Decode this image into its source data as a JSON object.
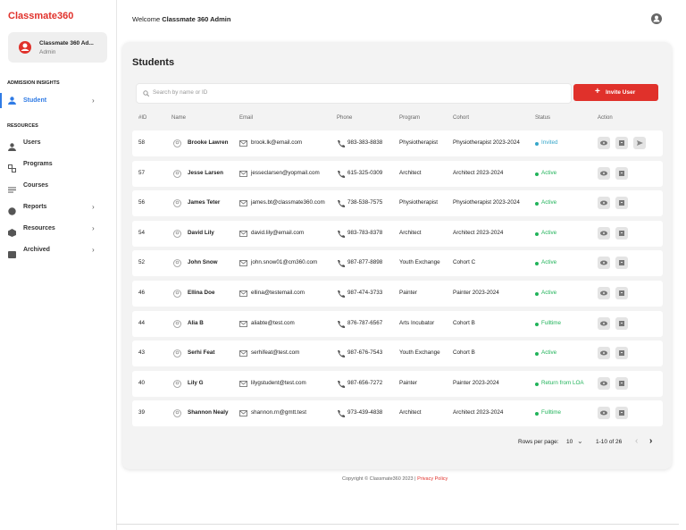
{
  "sidebar": {
    "logo": "Classmate360",
    "user": {
      "name": "Classmate 360 Ad...",
      "role": "Admin"
    },
    "sections": [
      {
        "title": "ADMISSION INSIGHTS",
        "items": [
          "Student"
        ]
      },
      {
        "title": "RESOURCES",
        "items": [
          "Users",
          "Programs",
          "Courses",
          "Reports",
          "Resources",
          "Archived"
        ]
      }
    ]
  },
  "header": {
    "welcome": "Welcome",
    "user": "Classmate 360 Admin"
  },
  "page": {
    "title": "Students",
    "search_placeholder": "Search by name or ID",
    "invite_button": "Invite User"
  },
  "table": {
    "columns": [
      "#ID",
      "Name",
      "Email",
      "Phone",
      "Program",
      "Cohort",
      "Status",
      "Action"
    ],
    "rows": [
      {
        "id": 58,
        "name": "Brooke Lawren",
        "email": "brook.lk@email.com",
        "phone": "983-383-8838",
        "program": "Physiotherapist",
        "cohort": "Physiotherapist 2023-2024",
        "status": "Invited"
      },
      {
        "id": 57,
        "name": "Jesse Larsen",
        "email": "jesseclarsen@yopmail.com",
        "phone": "615-325-0309",
        "program": "Architect",
        "cohort": "Architect 2023-2024",
        "status": "Active"
      },
      {
        "id": 56,
        "name": "James Teter",
        "email": "james.bt@classmate360.com",
        "phone": "738-538-7575",
        "program": "Physiotherapist",
        "cohort": "Physiotherapist 2023-2024",
        "status": "Active"
      },
      {
        "id": 54,
        "name": "David Lily",
        "email": "david.lily@email.com",
        "phone": "983-783-8378",
        "program": "Architect",
        "cohort": "Architect 2023-2024",
        "status": "Active"
      },
      {
        "id": 52,
        "name": "John Snow",
        "email": "john.snow01@cm360.com",
        "phone": "987-877-8898",
        "program": "Youth Exchange",
        "cohort": "Cohort C",
        "status": "Active"
      },
      {
        "id": 46,
        "name": "Ellina Doe",
        "email": "ellina@testemail.com",
        "phone": "987-474-3733",
        "program": "Painter",
        "cohort": "Painter 2023-2024",
        "status": "Active"
      },
      {
        "id": 44,
        "name": "Alia B",
        "email": "aliabte@test.com",
        "phone": "876-787-6567",
        "program": "Arts Incubator",
        "cohort": "Cohort B",
        "status": "Fulltime"
      },
      {
        "id": 43,
        "name": "Serhi Feat",
        "email": "serhifeat@test.com",
        "phone": "987-676-7543",
        "program": "Youth Exchange",
        "cohort": "Cohort B",
        "status": "Active"
      },
      {
        "id": 40,
        "name": "Lily G",
        "email": "lilygstudent@test.com",
        "phone": "987-656-7272",
        "program": "Painter",
        "cohort": "Painter 2023-2024",
        "status": "Return from LOA"
      },
      {
        "id": 39,
        "name": "Shannon Nealy",
        "email": "shannon.rn@gmtt.test",
        "phone": "973-439-4838",
        "program": "Architect",
        "cohort": "Architect 2023-2024",
        "status": "Fulltime"
      }
    ]
  },
  "pagination": {
    "rows_per_page_label": "Rows per page:",
    "rows_per_page": 10,
    "range": "1-10 of 26"
  },
  "footer": {
    "copyright": "Copyright © Classmate360 2023 |",
    "link": "Privacy Policy"
  }
}
